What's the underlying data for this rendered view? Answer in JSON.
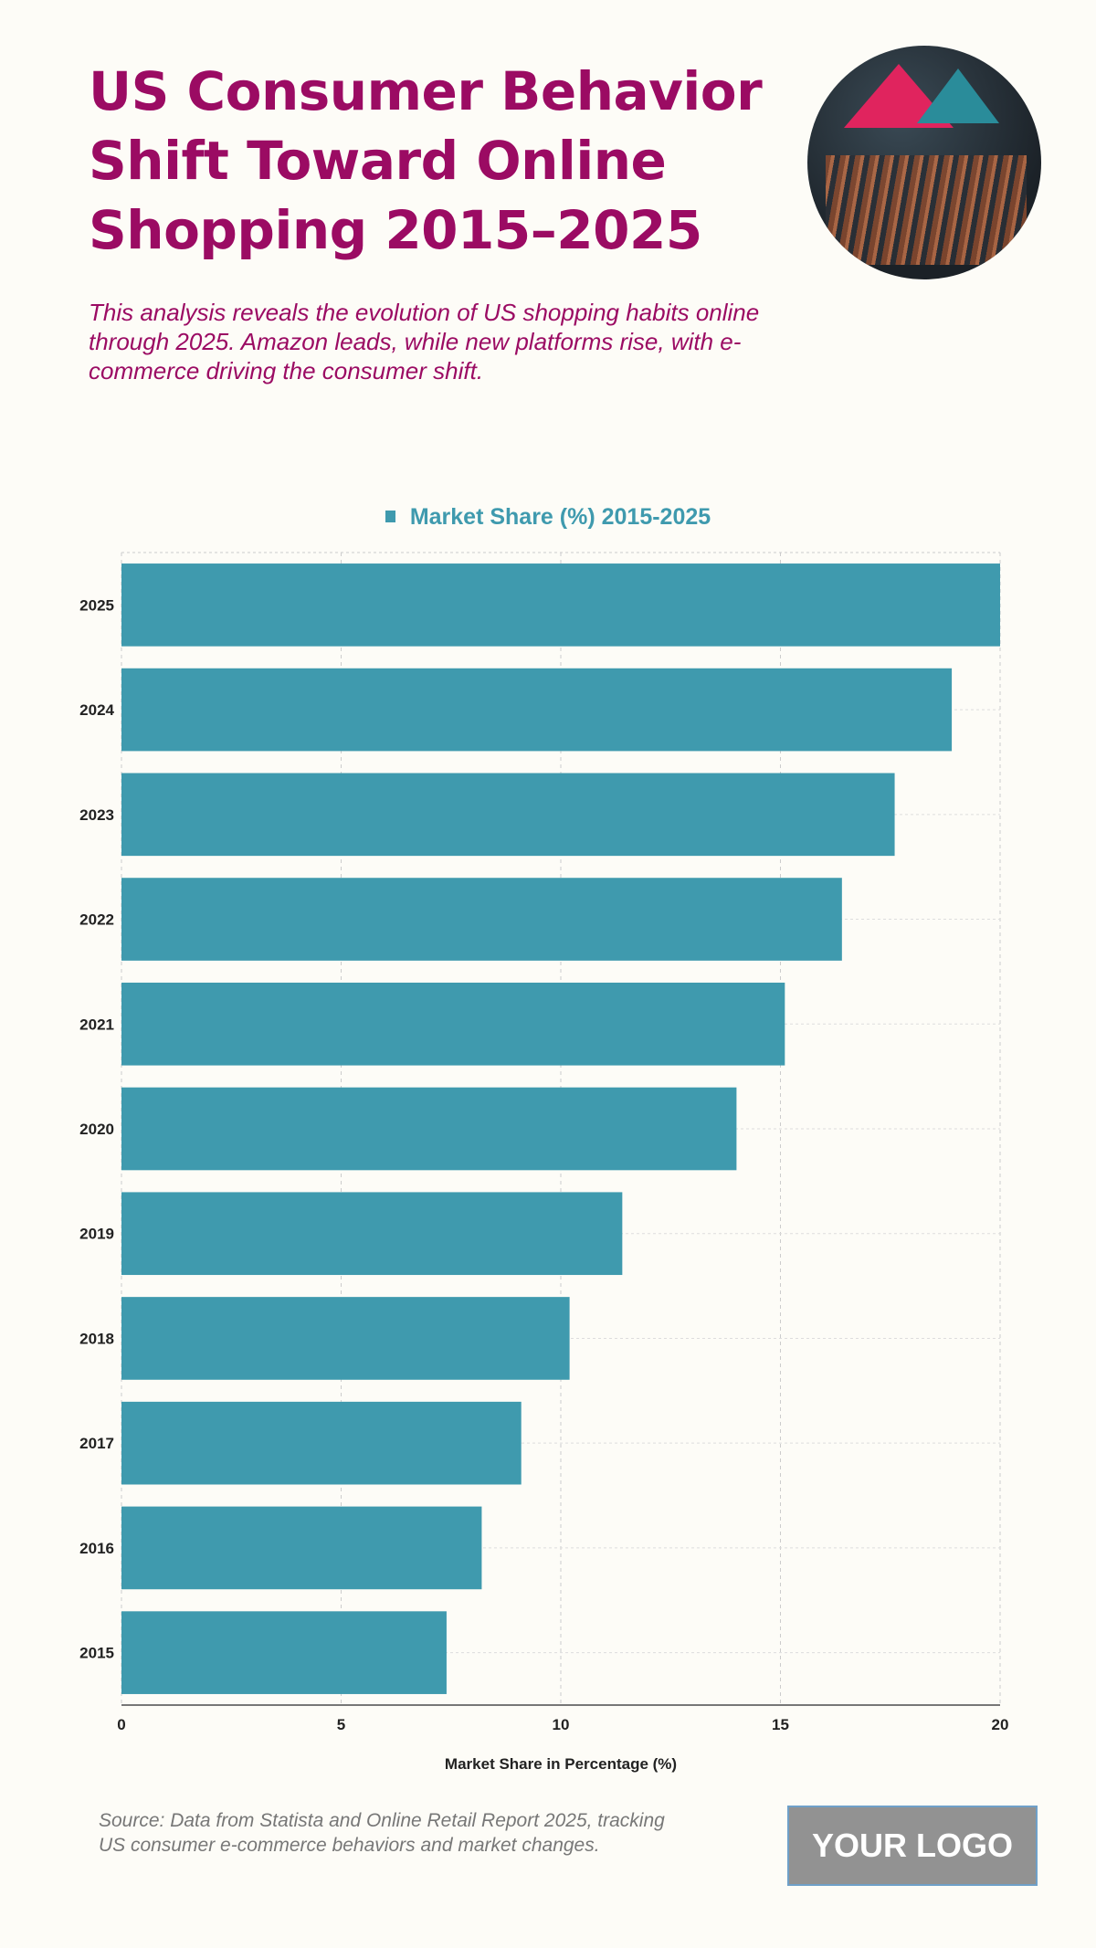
{
  "header": {
    "title": "US Consumer Behavior Shift Toward Online Shopping 2015–2025",
    "subtitle": "This analysis reveals the evolution of US shopping habits online through 2025. Amazon leads, while new platforms rise, with e-commerce driving the consumer shift."
  },
  "footer": {
    "source": "Source: Data from Statista and Online Retail Report 2025, tracking US consumer e-commerce behaviors and market changes.",
    "logo": "YOUR LOGO"
  },
  "colors": {
    "accent": "#9b0b63",
    "bar": "#3f9aae"
  },
  "chart_data": {
    "type": "bar",
    "orientation": "horizontal",
    "legend": "Market Share (%) 2015-2025",
    "legend_position": "top-center",
    "categories": [
      "2025",
      "2024",
      "2023",
      "2022",
      "2021",
      "2020",
      "2019",
      "2018",
      "2017",
      "2016",
      "2015"
    ],
    "values": [
      20.0,
      18.9,
      17.6,
      16.4,
      15.1,
      14.0,
      11.4,
      10.2,
      9.1,
      8.2,
      7.4
    ],
    "xlabel": "Market Share in Percentage (%)",
    "ylabel": "",
    "xlim": [
      0,
      20
    ],
    "xticks": [
      "0",
      "5",
      "10",
      "15",
      "20"
    ],
    "grid": true
  }
}
